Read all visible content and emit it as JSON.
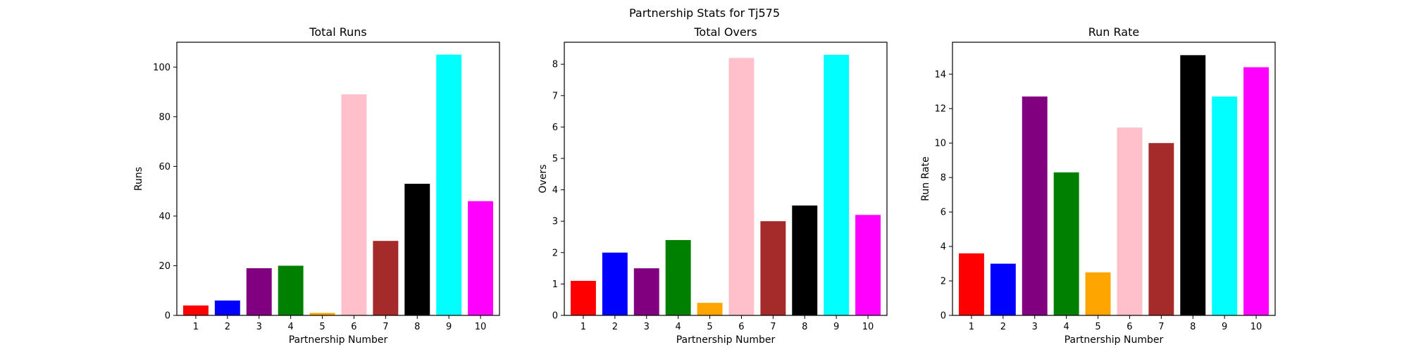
{
  "figure": {
    "suptitle": "Partnership Stats for Tj575"
  },
  "chart_data": [
    {
      "type": "bar",
      "title": "Total Runs",
      "xlabel": "Partnership Number",
      "ylabel": "Runs",
      "categories": [
        "1",
        "2",
        "3",
        "4",
        "5",
        "6",
        "7",
        "8",
        "9",
        "10"
      ],
      "values": [
        4,
        6,
        19,
        20,
        1,
        89,
        30,
        53,
        105,
        46
      ],
      "colors": [
        "#ff0000",
        "#0000ff",
        "#800080",
        "#008000",
        "#ffa500",
        "#ffc0cb",
        "#a52a2a",
        "#000000",
        "#00ffff",
        "#ff00ff"
      ],
      "ylim": [
        0,
        110
      ],
      "yticks": [
        0,
        20,
        40,
        60,
        80,
        100
      ],
      "grid": false,
      "legend": "none"
    },
    {
      "type": "bar",
      "title": "Total Overs",
      "xlabel": "Partnership Number",
      "ylabel": "Overs",
      "categories": [
        "1",
        "2",
        "3",
        "4",
        "5",
        "6",
        "7",
        "8",
        "9",
        "10"
      ],
      "values": [
        1.1,
        2.0,
        1.5,
        2.4,
        0.4,
        8.2,
        3.0,
        3.5,
        8.3,
        3.2
      ],
      "colors": [
        "#ff0000",
        "#0000ff",
        "#800080",
        "#008000",
        "#ffa500",
        "#ffc0cb",
        "#a52a2a",
        "#000000",
        "#00ffff",
        "#ff00ff"
      ],
      "ylim": [
        0,
        8.7
      ],
      "yticks": [
        0,
        1,
        2,
        3,
        4,
        5,
        6,
        7,
        8
      ],
      "grid": false,
      "legend": "none"
    },
    {
      "type": "bar",
      "title": "Run Rate",
      "xlabel": "Partnership Number",
      "ylabel": "Run Rate",
      "categories": [
        "1",
        "2",
        "3",
        "4",
        "5",
        "6",
        "7",
        "8",
        "9",
        "10"
      ],
      "values": [
        3.6,
        3.0,
        12.7,
        8.3,
        2.5,
        10.9,
        10.0,
        15.1,
        12.7,
        14.4
      ],
      "colors": [
        "#ff0000",
        "#0000ff",
        "#800080",
        "#008000",
        "#ffa500",
        "#ffc0cb",
        "#a52a2a",
        "#000000",
        "#00ffff",
        "#ff00ff"
      ],
      "ylim": [
        0,
        15.85
      ],
      "yticks": [
        0,
        2,
        4,
        6,
        8,
        10,
        12,
        14
      ],
      "grid": false,
      "legend": "none"
    }
  ]
}
